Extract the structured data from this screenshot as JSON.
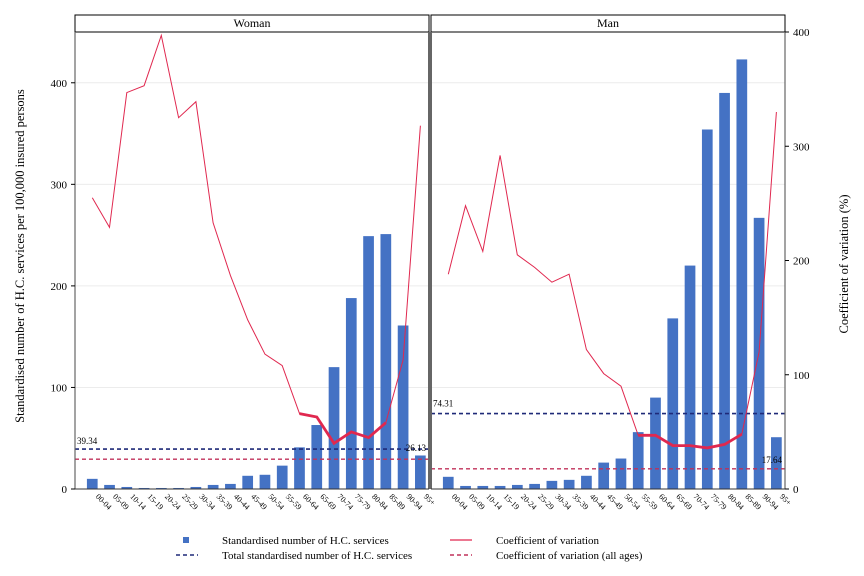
{
  "chart_data": {
    "type": "bar",
    "ylabel_left": "Standardised number of H.C. services per 100,000 insured persons",
    "ylabel_right": "Coefficient of variation (%)",
    "left_ylim": [
      0,
      450
    ],
    "left_ticks": [
      "0",
      "100",
      "200",
      "300",
      "400"
    ],
    "right_ylim": [
      0,
      400
    ],
    "right_ticks": [
      "0",
      "100",
      "200",
      "300",
      "400"
    ],
    "categories": [
      "00-04",
      "05-09",
      "10-14",
      "15-19",
      "20-24",
      "25-29",
      "30-34",
      "35-39",
      "40-44",
      "45-49",
      "50-54",
      "55-59",
      "60-64",
      "65-69",
      "70-74",
      "75-79",
      "80-84",
      "85-89",
      "90-94",
      "95+"
    ],
    "panels": [
      {
        "title": "Woman",
        "bars": [
          10,
          4,
          2,
          1,
          1,
          1,
          2,
          4,
          5,
          13,
          14,
          23,
          41,
          63,
          120,
          188,
          249,
          251,
          161,
          33
        ],
        "cv": [
          255,
          229,
          347,
          353,
          397,
          325,
          339,
          233,
          187,
          148,
          118,
          108,
          66,
          63,
          40,
          50,
          45,
          58,
          113,
          318
        ],
        "cv_bold_from": 12,
        "cv_bold_to": 17,
        "total": 39.34,
        "total_label": "39.34",
        "cv_all": 26.13,
        "cv_all_label": "26.13"
      },
      {
        "title": "Man",
        "bars": [
          12,
          3,
          3,
          3,
          4,
          5,
          8,
          9,
          13,
          26,
          30,
          56,
          90,
          168,
          220,
          354,
          390,
          423,
          267,
          51
        ],
        "cv": [
          188,
          248,
          208,
          292,
          205,
          194,
          181,
          188,
          122,
          101,
          90,
          47,
          47,
          38,
          38,
          36,
          39,
          48,
          120,
          330
        ],
        "cv_bold_from": 11,
        "cv_bold_to": 17,
        "total": 74.31,
        "total_label": "74.31",
        "cv_all": 17.64,
        "cv_all_label": "17.64"
      }
    ],
    "legend": [
      {
        "label": "Standardised number of H.C. services",
        "kind": "bar",
        "color": "#4472c4"
      },
      {
        "label": "Coefficient of variation",
        "kind": "line",
        "color": "#e0284f"
      },
      {
        "label": "Total standardised number of H.C. services",
        "kind": "dash",
        "color": "#1f2a78"
      },
      {
        "label": "Coefficient of variation (all ages)",
        "kind": "dash",
        "color": "#c0305a"
      }
    ],
    "colors": {
      "bar": "#4472c4",
      "cv": "#e0284f",
      "total": "#1f2a78",
      "cv_all": "#c0305a"
    }
  }
}
